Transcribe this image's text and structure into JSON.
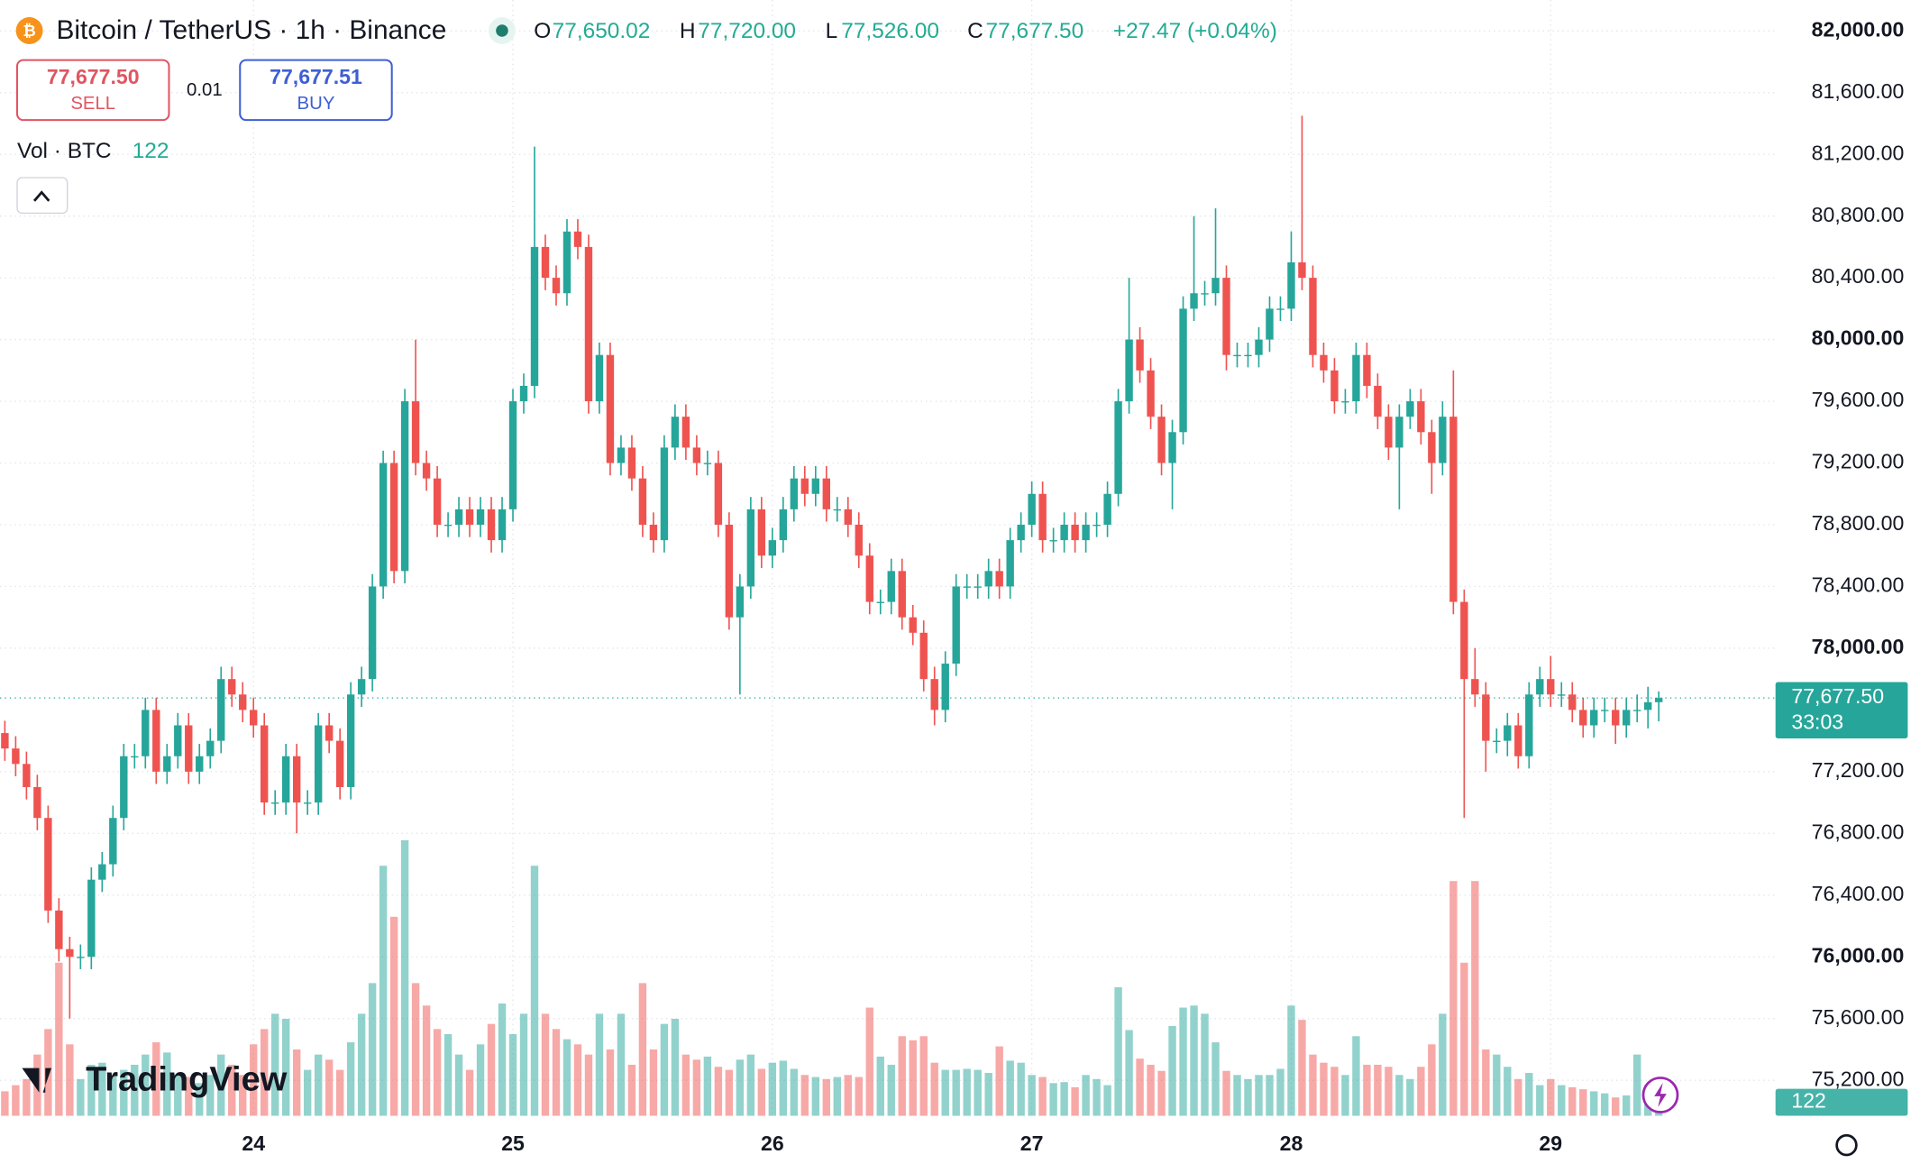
{
  "header": {
    "symbol": "Bitcoin / TetherUS · 1h · Binance",
    "o_label": "O",
    "o": "77,650.02",
    "h_label": "H",
    "h": "77,720.00",
    "l_label": "L",
    "l": "77,526.00",
    "c_label": "C",
    "c": "77,677.50",
    "change": "+27.47 (+0.04%)"
  },
  "trade": {
    "sell_price": "77,677.50",
    "sell": "SELL",
    "qty": "0.01",
    "buy_price": "77,677.51",
    "buy": "BUY"
  },
  "volume_legend": {
    "label": "Vol · BTC"
  },
  "last_price": {
    "label": "77,677.50",
    "countdown": "33:03"
  },
  "logo": "TradingView",
  "chart_data": {
    "type": "candlestick",
    "up_color": "#26a69a",
    "down_color": "#ef5350",
    "xlim": [
      -0.45,
      163.8
    ],
    "ylim": [
      74970,
      82200
    ],
    "xticks": [
      {
        "value": 23,
        "label": "24"
      },
      {
        "value": 47,
        "label": "25"
      },
      {
        "value": 71,
        "label": "26"
      },
      {
        "value": 95,
        "label": "27"
      },
      {
        "value": 119,
        "label": "28"
      },
      {
        "value": 143,
        "label": "29"
      }
    ],
    "yticks": [
      {
        "value": 75200,
        "label": "75,200.00"
      },
      {
        "value": 75600,
        "label": "75,600.00"
      },
      {
        "value": 76000,
        "label": "76,000.00"
      },
      {
        "value": 76400,
        "label": "76,400.00"
      },
      {
        "value": 76800,
        "label": "76,800.00"
      },
      {
        "value": 77200,
        "label": "77,200.00"
      },
      {
        "value": 78000,
        "label": "78,000.00"
      },
      {
        "value": 78400,
        "label": "78,400.00"
      },
      {
        "value": 78800,
        "label": "78,800.00"
      },
      {
        "value": 79200,
        "label": "79,200.00"
      },
      {
        "value": 79600,
        "label": "79,600.00"
      },
      {
        "value": 80000,
        "label": "80,000.00"
      },
      {
        "value": 80400,
        "label": "80,400.00"
      },
      {
        "value": 80800,
        "label": "80,800.00"
      },
      {
        "value": 81200,
        "label": "81,200.00"
      },
      {
        "value": 81600,
        "label": "81,600.00"
      },
      {
        "value": 82000,
        "label": "82,000.00"
      }
    ],
    "grid": true,
    "open": [
      77450,
      77350,
      77250,
      77100,
      76900,
      76300,
      76050,
      76000,
      76000,
      76500,
      76600,
      76900,
      77300,
      77300,
      77600,
      77200,
      77300,
      77500,
      77200,
      77300,
      77400,
      77800,
      77700,
      77600,
      77500,
      77000,
      77000,
      77300,
      77000,
      77000,
      77500,
      77400,
      77100,
      77700,
      77800,
      78400,
      79200,
      78500,
      79600,
      79200,
      79100,
      78800,
      78800,
      78900,
      78800,
      78900,
      78700,
      78900,
      79600,
      79700,
      80600,
      80400,
      80300,
      80700,
      80600,
      79600,
      79900,
      79200,
      79300,
      79100,
      78800,
      78700,
      79300,
      79500,
      79300,
      79200,
      79200,
      78800,
      78200,
      78400,
      78900,
      78600,
      78700,
      78900,
      79100,
      79000,
      79100,
      78900,
      78900,
      78800,
      78600,
      78300,
      78300,
      78500,
      78200,
      78100,
      77800,
      77600,
      77900,
      78400,
      78400,
      78400,
      78500,
      78400,
      78700,
      78800,
      79000,
      78700,
      78700,
      78800,
      78700,
      78800,
      78800,
      79000,
      79600,
      80000,
      79800,
      79500,
      79200,
      79400,
      80200,
      80300,
      80300,
      80400,
      79900,
      79900,
      79900,
      80000,
      80200,
      80200,
      80500,
      80400,
      79900,
      79800,
      79600,
      79600,
      79900,
      79700,
      79500,
      79300,
      79500,
      79600,
      79400,
      79200,
      79500,
      78300,
      77800,
      77700,
      77400,
      77400,
      77500,
      77300,
      77700,
      77800,
      77700,
      77700,
      77600,
      77500,
      77600,
      77600,
      77500,
      77600,
      77600,
      77650.02
    ],
    "high": [
      77530,
      77430,
      77330,
      77180,
      76980,
      76380,
      76130,
      76080,
      76580,
      76680,
      76980,
      77380,
      77380,
      77680,
      77680,
      77380,
      77580,
      77580,
      77380,
      77480,
      77880,
      77880,
      77780,
      77680,
      77580,
      77080,
      77380,
      77380,
      77080,
      77580,
      77580,
      77480,
      77780,
      77880,
      78480,
      79280,
      79280,
      79680,
      80000,
      79280,
      79180,
      78880,
      78980,
      78980,
      78980,
      78980,
      78980,
      79680,
      79780,
      81250,
      80680,
      80480,
      80780,
      80780,
      80680,
      79980,
      79980,
      79380,
      79380,
      79180,
      78880,
      79380,
      79580,
      79580,
      79380,
      79280,
      79280,
      78880,
      78480,
      78980,
      78980,
      78780,
      78980,
      79180,
      79180,
      79180,
      79180,
      78980,
      78980,
      78880,
      78680,
      78380,
      78580,
      78580,
      78280,
      78180,
      77880,
      77980,
      78480,
      78480,
      78480,
      78580,
      78580,
      78780,
      78880,
      79080,
      79080,
      78780,
      78880,
      78880,
      78880,
      78880,
      79080,
      79680,
      80400,
      80080,
      79880,
      79580,
      79480,
      80280,
      80800,
      80380,
      80850,
      80480,
      79980,
      79980,
      80080,
      80280,
      80280,
      80700,
      81450,
      80480,
      79980,
      79880,
      79680,
      79980,
      79980,
      79780,
      79580,
      79580,
      79680,
      79680,
      79480,
      79600,
      79800,
      78380,
      78000,
      77780,
      77480,
      77580,
      77580,
      77780,
      77880,
      77950,
      77780,
      77780,
      77680,
      77680,
      77680,
      77680,
      77680,
      77700,
      77750,
      77720
    ],
    "low": [
      77270,
      77170,
      77020,
      76820,
      76220,
      75970,
      75600,
      75920,
      75920,
      76420,
      76520,
      76820,
      77220,
      77220,
      77120,
      77120,
      77220,
      77120,
      77120,
      77220,
      77320,
      77620,
      77520,
      77420,
      76920,
      76920,
      76920,
      76800,
      76920,
      76920,
      77320,
      77020,
      77020,
      77620,
      77720,
      78320,
      78420,
      78420,
      79120,
      79020,
      78720,
      78720,
      78720,
      78720,
      78720,
      78620,
      78620,
      78820,
      79520,
      79620,
      80320,
      80220,
      80220,
      80520,
      79520,
      79520,
      79120,
      79120,
      79020,
      78720,
      78620,
      78620,
      79220,
      79220,
      79120,
      79120,
      78720,
      78120,
      77700,
      78320,
      78520,
      78520,
      78620,
      78820,
      78920,
      78920,
      78820,
      78820,
      78720,
      78520,
      78220,
      78220,
      78220,
      78120,
      78020,
      77720,
      77500,
      77520,
      77820,
      78320,
      78320,
      78320,
      78320,
      78320,
      78620,
      78720,
      78620,
      78620,
      78620,
      78620,
      78620,
      78720,
      78720,
      78920,
      79520,
      79720,
      79420,
      79120,
      78900,
      79320,
      80120,
      80220,
      80220,
      79800,
      79820,
      79820,
      79820,
      79920,
      80120,
      80120,
      80320,
      79820,
      79720,
      79520,
      79520,
      79520,
      79620,
      79420,
      79220,
      78900,
      79420,
      79320,
      79000,
      79120,
      78220,
      76900,
      77620,
      77200,
      77320,
      77300,
      77220,
      77220,
      77620,
      77620,
      77620,
      77520,
      77420,
      77420,
      77520,
      77380,
      77420,
      77520,
      77480,
      77526
    ],
    "close": [
      77350,
      77250,
      77100,
      76900,
      76300,
      76050,
      76000,
      76000,
      76500,
      76600,
      76900,
      77300,
      77300,
      77600,
      77200,
      77300,
      77500,
      77200,
      77300,
      77400,
      77800,
      77700,
      77600,
      77500,
      77000,
      77000,
      77300,
      77000,
      77000,
      77500,
      77400,
      77100,
      77700,
      77800,
      78400,
      79200,
      78500,
      79600,
      79200,
      79100,
      78800,
      78800,
      78900,
      78800,
      78900,
      78700,
      78900,
      79600,
      79700,
      80600,
      80400,
      80300,
      80700,
      80600,
      79600,
      79900,
      79200,
      79300,
      79100,
      78800,
      78700,
      79300,
      79500,
      79300,
      79200,
      79200,
      78800,
      78200,
      78400,
      78900,
      78600,
      78700,
      78900,
      79100,
      79000,
      79100,
      78900,
      78900,
      78800,
      78600,
      78300,
      78300,
      78500,
      78200,
      78100,
      77800,
      77600,
      77900,
      78400,
      78400,
      78400,
      78500,
      78400,
      78700,
      78800,
      79000,
      78700,
      78700,
      78800,
      78700,
      78800,
      78800,
      79000,
      79600,
      80000,
      79800,
      79500,
      79200,
      79400,
      80200,
      80300,
      80300,
      80400,
      79900,
      79900,
      79900,
      80000,
      80200,
      80200,
      80500,
      80400,
      79900,
      79800,
      79600,
      79600,
      79900,
      79700,
      79500,
      79300,
      79500,
      79600,
      79400,
      79200,
      79500,
      78300,
      77800,
      77700,
      77400,
      77400,
      77500,
      77300,
      77700,
      77800,
      77700,
      77700,
      77600,
      77500,
      77600,
      77600,
      77500,
      77600,
      77600,
      77650,
      77677.5
    ],
    "volume": [
      240,
      300,
      360,
      600,
      850,
      1500,
      700,
      360,
      500,
      520,
      400,
      450,
      500,
      600,
      720,
      620,
      400,
      380,
      320,
      400,
      600,
      500,
      400,
      700,
      850,
      1000,
      950,
      650,
      450,
      600,
      550,
      450,
      720,
      1000,
      1300,
      2450,
      1950,
      2700,
      1300,
      1080,
      850,
      800,
      600,
      450,
      700,
      900,
      1100,
      800,
      1000,
      2450,
      1000,
      850,
      750,
      700,
      600,
      1000,
      650,
      1000,
      500,
      1300,
      650,
      900,
      950,
      600,
      550,
      580,
      480,
      450,
      550,
      600,
      460,
      520,
      540,
      460,
      400,
      380,
      360,
      380,
      400,
      380,
      1060,
      580,
      500,
      780,
      740,
      780,
      520,
      450,
      450,
      460,
      450,
      420,
      680,
      540,
      520,
      400,
      380,
      320,
      330,
      280,
      400,
      360,
      300,
      1260,
      840,
      560,
      500,
      440,
      880,
      1060,
      1080,
      1000,
      720,
      440,
      400,
      360,
      400,
      400,
      460,
      1080,
      940,
      600,
      520,
      480,
      400,
      780,
      500,
      500,
      480,
      400,
      360,
      480,
      700,
      1000,
      2300,
      1500,
      2300,
      650,
      600,
      480,
      360,
      420,
      300,
      360,
      300,
      280,
      260,
      240,
      220,
      180,
      200,
      600,
      300,
      122
    ]
  }
}
